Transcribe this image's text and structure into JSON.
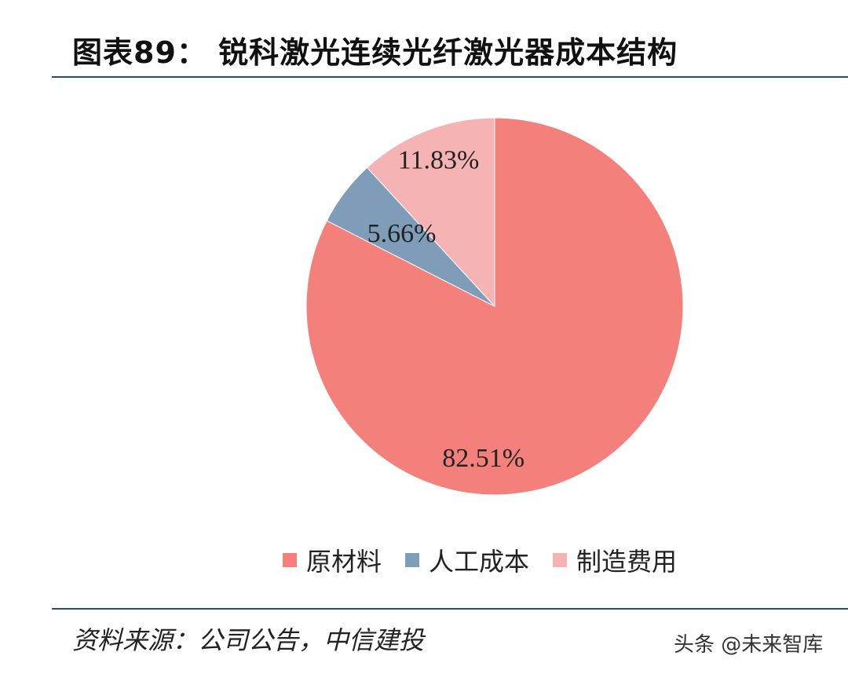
{
  "header": {
    "title": "图表89：   锐科激光连续光纤激光器成本结构"
  },
  "chart_data": {
    "type": "pie",
    "title": "锐科激光连续光纤激光器成本结构",
    "categories": [
      "原材料",
      "人工成本",
      "制造费用"
    ],
    "values": [
      82.51,
      5.66,
      11.83
    ],
    "value_labels": [
      "82.51%",
      "5.66%",
      "11.83%"
    ],
    "colors": [
      "#F4807C",
      "#7F9DB9",
      "#F6B3B3"
    ],
    "legend_position": "bottom"
  },
  "legend": {
    "items": [
      {
        "label": "原材料",
        "color": "#F4807C"
      },
      {
        "label": "人工成本",
        "color": "#7F9DB9"
      },
      {
        "label": "制造费用",
        "color": "#F6B3B3"
      }
    ]
  },
  "footer": {
    "source": "资料来源：公司公告，中信建投",
    "watermark": "头条 @未来智库"
  }
}
